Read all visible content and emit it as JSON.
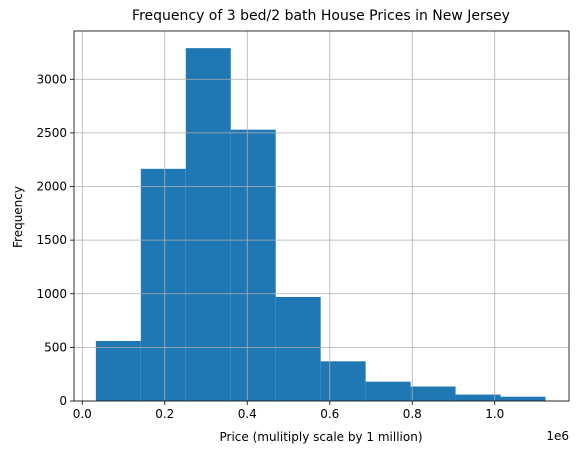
{
  "chart_data": {
    "type": "bar",
    "title": "Frequency of 3 bed/2 bath House Prices in New Jersey",
    "xlabel": "Price (mulitiply scale by 1 million)",
    "ylabel": "Frequency",
    "x_offset_label": "1e6",
    "bin_edges": [
      33000,
      142000,
      251000,
      360000,
      469000,
      578000,
      687000,
      796000,
      905000,
      1014000,
      1123000
    ],
    "values": [
      560,
      2165,
      3290,
      2530,
      970,
      370,
      180,
      135,
      60,
      40
    ],
    "xlim": [
      -20000,
      1180000
    ],
    "ylim": [
      0,
      3450
    ],
    "xticks": [
      0,
      200000,
      400000,
      600000,
      800000,
      1000000
    ],
    "xtick_labels": [
      "0.0",
      "0.2",
      "0.4",
      "0.6",
      "0.8",
      "1.0"
    ],
    "yticks": [
      0,
      500,
      1000,
      1500,
      2000,
      2500,
      3000
    ],
    "ytick_labels": [
      "0",
      "500",
      "1000",
      "1500",
      "2000",
      "2500",
      "3000"
    ],
    "grid": true,
    "bar_color": "#1f77b4",
    "grid_color": "#b0b0b0"
  }
}
